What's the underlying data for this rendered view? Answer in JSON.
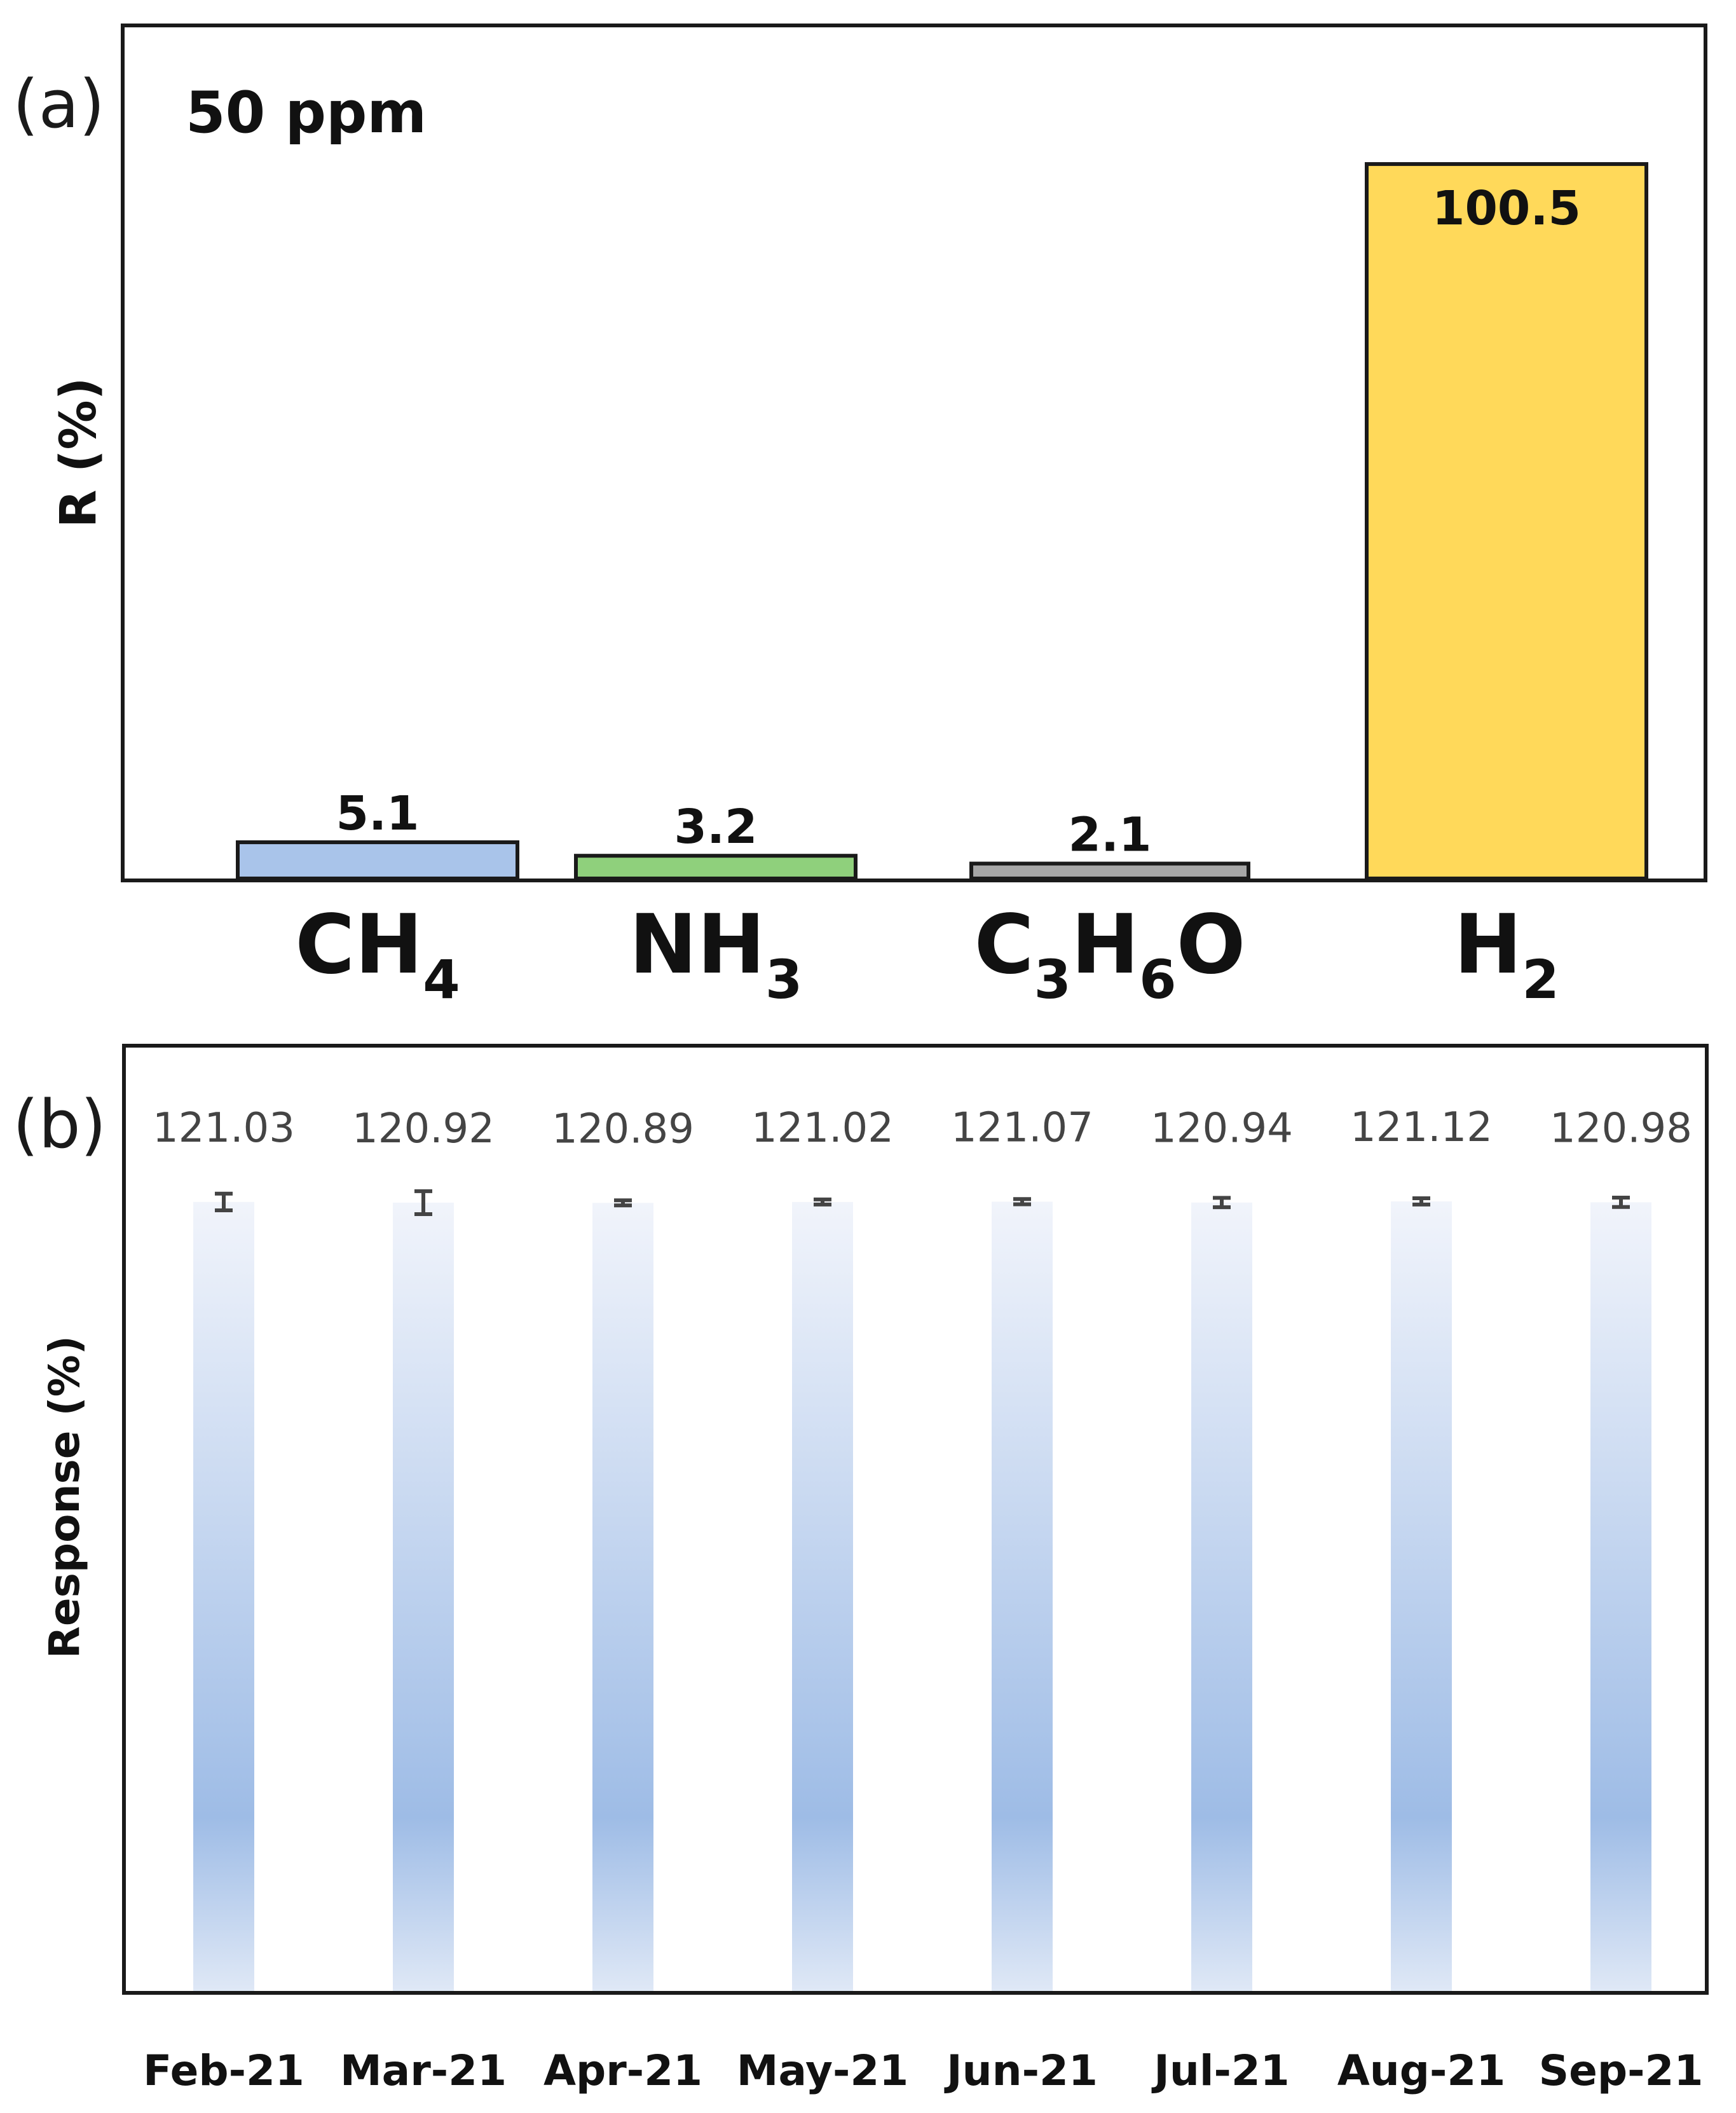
{
  "chart_data": [
    {
      "type": "bar",
      "panel_label": "(a)",
      "annotation": "50 ppm",
      "ylabel": "R (%)",
      "xlabel": "",
      "ylim": [
        0,
        120
      ],
      "categories": [
        {
          "base": "CH",
          "sub": "4"
        },
        {
          "base": "NH",
          "sub": "3"
        },
        {
          "base": "C3H6O",
          "parts": [
            {
              "t": "C"
            },
            {
              "s": "3"
            },
            {
              "t": "H"
            },
            {
              "s": "6"
            },
            {
              "t": "O"
            }
          ]
        },
        {
          "base": "H",
          "sub": "2"
        }
      ],
      "values": [
        5.1,
        3.2,
        2.1,
        100.5
      ],
      "value_labels": [
        "5.1",
        "3.2",
        "2.1",
        "100.5"
      ],
      "colors": [
        "#a9c4ea",
        "#8fd07c",
        "#a6a6a6",
        "#ffd95a"
      ],
      "grid": false,
      "legend": "none"
    },
    {
      "type": "bar",
      "panel_label": "(b)",
      "ylabel": "Response (%)",
      "xlabel": "",
      "ylim": [
        0,
        145
      ],
      "categories": [
        "Feb-21",
        "Mar-21",
        "Apr-21",
        "May-21",
        "Jun-21",
        "Jul-21",
        "Aug-21",
        "Sep-21"
      ],
      "values": [
        121.03,
        120.92,
        120.89,
        121.02,
        121.07,
        120.94,
        121.12,
        120.98
      ],
      "value_labels": [
        "121.03",
        "120.92",
        "120.89",
        "121.02",
        "121.07",
        "120.94",
        "121.12",
        "120.98"
      ],
      "errors": [
        0.8,
        1.1,
        0.1,
        0.1,
        0.25,
        0.45,
        0.3,
        0.45
      ],
      "fill": "gradient",
      "gradient_colors": [
        "#eef2fa",
        "#9ebce6"
      ],
      "grid": false,
      "legend": "none"
    }
  ]
}
